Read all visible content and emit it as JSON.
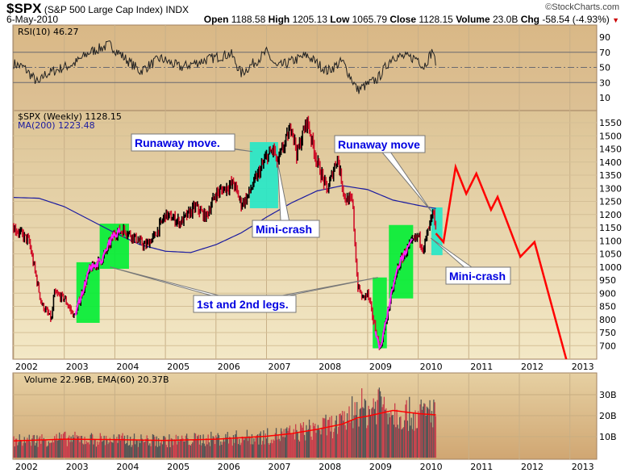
{
  "header": {
    "symbol": "$SPX",
    "name": "(S&P 500 Large Cap Index) INDX",
    "date": "6-May-2010",
    "copyright": "©StockCharts.com",
    "quote": [
      {
        "k": "Open",
        "v": "1188.58"
      },
      {
        "k": "High",
        "v": "1205.13"
      },
      {
        "k": "Low",
        "v": "1065.79"
      },
      {
        "k": "Close",
        "v": "1128.15"
      },
      {
        "k": "Volume",
        "v": "23.0B"
      },
      {
        "k": "Chg",
        "v": "-58.54 (-4.93%)"
      }
    ],
    "chg_color": "#cc0000"
  },
  "chart_data": [
    {
      "type": "line",
      "title": "RSI(10) 46.27",
      "ylim": [
        0,
        100
      ],
      "yticks": [
        "90",
        "70",
        "50",
        "30",
        "10"
      ],
      "tick_values": [
        90,
        70,
        50,
        30,
        10
      ],
      "reference_lines": [
        70,
        50,
        30
      ],
      "x": [
        2002.0,
        2002.2,
        2002.5,
        2002.6,
        2002.9,
        2003.2,
        2003.5,
        2003.9,
        2004.2,
        2004.5,
        2004.9,
        2005.3,
        2005.8,
        2006.3,
        2006.5,
        2007.0,
        2007.2,
        2007.8,
        2008.2,
        2008.5,
        2008.8,
        2009.2,
        2009.5,
        2010.0,
        2010.1,
        2010.3,
        2010.35
      ],
      "values": [
        55,
        50,
        28,
        40,
        48,
        55,
        70,
        80,
        62,
        45,
        62,
        50,
        60,
        68,
        42,
        70,
        50,
        66,
        45,
        58,
        20,
        35,
        65,
        62,
        50,
        74,
        46
      ]
    },
    {
      "type": "bar",
      "title": "$SPX (Weekly) 1128.15",
      "legend_ma": "MA(200) 1223.48",
      "ylim": [
        650,
        1600
      ],
      "yticks": [
        "1550",
        "1500",
        "1450",
        "1400",
        "1350",
        "1300",
        "1250",
        "1200",
        "1150",
        "1100",
        "1050",
        "1000",
        "950",
        "900",
        "850",
        "800",
        "750",
        "700"
      ],
      "xticks": [
        "2002",
        "2003",
        "2004",
        "2005",
        "2006",
        "2007",
        "2008",
        "2009",
        "2010",
        "2011",
        "2012",
        "2013"
      ],
      "price_path": {
        "x": [
          2002.0,
          2002.3,
          2002.55,
          2002.75,
          2002.8,
          2003.0,
          2003.2,
          2003.5,
          2003.75,
          2004.0,
          2004.2,
          2004.6,
          2004.8,
          2005.0,
          2005.3,
          2005.6,
          2005.8,
          2006.0,
          2006.35,
          2006.5,
          2006.6,
          2007.0,
          2007.15,
          2007.2,
          2007.5,
          2007.6,
          2007.8,
          2008.0,
          2008.2,
          2008.4,
          2008.55,
          2008.7,
          2008.8,
          2008.9,
          2009.0,
          2009.2,
          2009.25,
          2009.5,
          2009.6,
          2009.75,
          2010.0,
          2010.1,
          2010.3,
          2010.35
        ],
        "values": [
          1150,
          1100,
          860,
          800,
          900,
          880,
          810,
          990,
          1030,
          1130,
          1140,
          1080,
          1120,
          1200,
          1170,
          1230,
          1190,
          1280,
          1320,
          1240,
          1260,
          1420,
          1450,
          1390,
          1540,
          1430,
          1560,
          1400,
          1290,
          1420,
          1260,
          1250,
          930,
          880,
          900,
          720,
          690,
          920,
          1000,
          1060,
          1120,
          1070,
          1210,
          1128
        ]
      },
      "ma200": {
        "x": [
          2002.0,
          2002.5,
          2003.0,
          2003.5,
          2004.0,
          2004.5,
          2005.0,
          2005.5,
          2006.0,
          2006.5,
          2007.0,
          2007.5,
          2008.0,
          2008.5,
          2009.0,
          2009.5,
          2010.0,
          2010.35
        ],
        "values": [
          1265,
          1262,
          1230,
          1180,
          1130,
          1085,
          1060,
          1055,
          1085,
          1130,
          1190,
          1245,
          1290,
          1310,
          1295,
          1255,
          1235,
          1223
        ]
      },
      "projection": {
        "x": [
          2010.35,
          2010.5,
          2010.74,
          2010.95,
          2011.15,
          2011.44,
          2011.57,
          2012.02,
          2012.3,
          2012.94
        ],
        "values": [
          1128,
          1095,
          1381,
          1279,
          1356,
          1218,
          1267,
          1039,
          1095,
          640
        ],
        "color": "#ff0000"
      },
      "highlights": [
        {
          "x": [
            2003.24,
            2003.7
          ],
          "y": [
            787,
            1018
          ],
          "color": "#00ee33"
        },
        {
          "x": [
            2003.7,
            2004.28
          ],
          "y": [
            993,
            1165
          ],
          "color": "#00ee33"
        },
        {
          "x": [
            2006.67,
            2007.23
          ],
          "y": [
            1224,
            1476
          ],
          "color": "#22e8c8"
        },
        {
          "x": [
            2009.1,
            2009.38
          ],
          "y": [
            690,
            960
          ],
          "color": "#00ee33"
        },
        {
          "x": [
            2009.42,
            2009.9
          ],
          "y": [
            880,
            1160
          ],
          "color": "#00ee33"
        },
        {
          "x": [
            2010.26,
            2010.48
          ],
          "y": [
            1045,
            1227
          ],
          "color": "#22e8c8"
        }
      ],
      "annotations": [
        {
          "text": "Runaway move.",
          "at": [
            2006.72,
            1440
          ]
        },
        {
          "text": "Mini-crash",
          "at": [
            2007.22,
            1400
          ]
        },
        {
          "text": "Runaway move",
          "at": [
            2010.27,
            1210
          ]
        },
        {
          "text": "Mini-crash",
          "at": [
            2010.25,
            1110
          ]
        },
        {
          "text": "1st and 2nd legs.",
          "at": [
            2003.9,
            1000
          ],
          "at2": [
            2009.2,
            960
          ]
        }
      ]
    },
    {
      "type": "bar",
      "title": "Volume 22.96B, EMA(60) 20.37B",
      "yticks": [
        "30B",
        "20B",
        "10B"
      ],
      "tick_values": [
        30,
        20,
        10
      ],
      "ylim": [
        0,
        38
      ],
      "level": {
        "x": [
          2002.0,
          2003.0,
          2004.0,
          2005.0,
          2006.0,
          2007.0,
          2007.5,
          2008.0,
          2008.5,
          2008.8,
          2009.0,
          2009.25,
          2009.5,
          2010.0,
          2010.35
        ],
        "values": [
          8,
          9,
          8.5,
          8,
          9,
          10,
          11.5,
          14,
          16,
          25,
          22,
          28,
          22,
          20,
          23
        ]
      },
      "ema60": {
        "x": [
          2002.0,
          2003.0,
          2004.0,
          2005.0,
          2006.0,
          2007.0,
          2007.5,
          2008.0,
          2008.5,
          2008.8,
          2009.0,
          2009.5,
          2010.0,
          2010.35
        ],
        "values": [
          8,
          8.8,
          8.6,
          8.2,
          8.8,
          10.2,
          11.5,
          13.5,
          16,
          19,
          19.8,
          22.5,
          21,
          20.4
        ]
      }
    }
  ]
}
